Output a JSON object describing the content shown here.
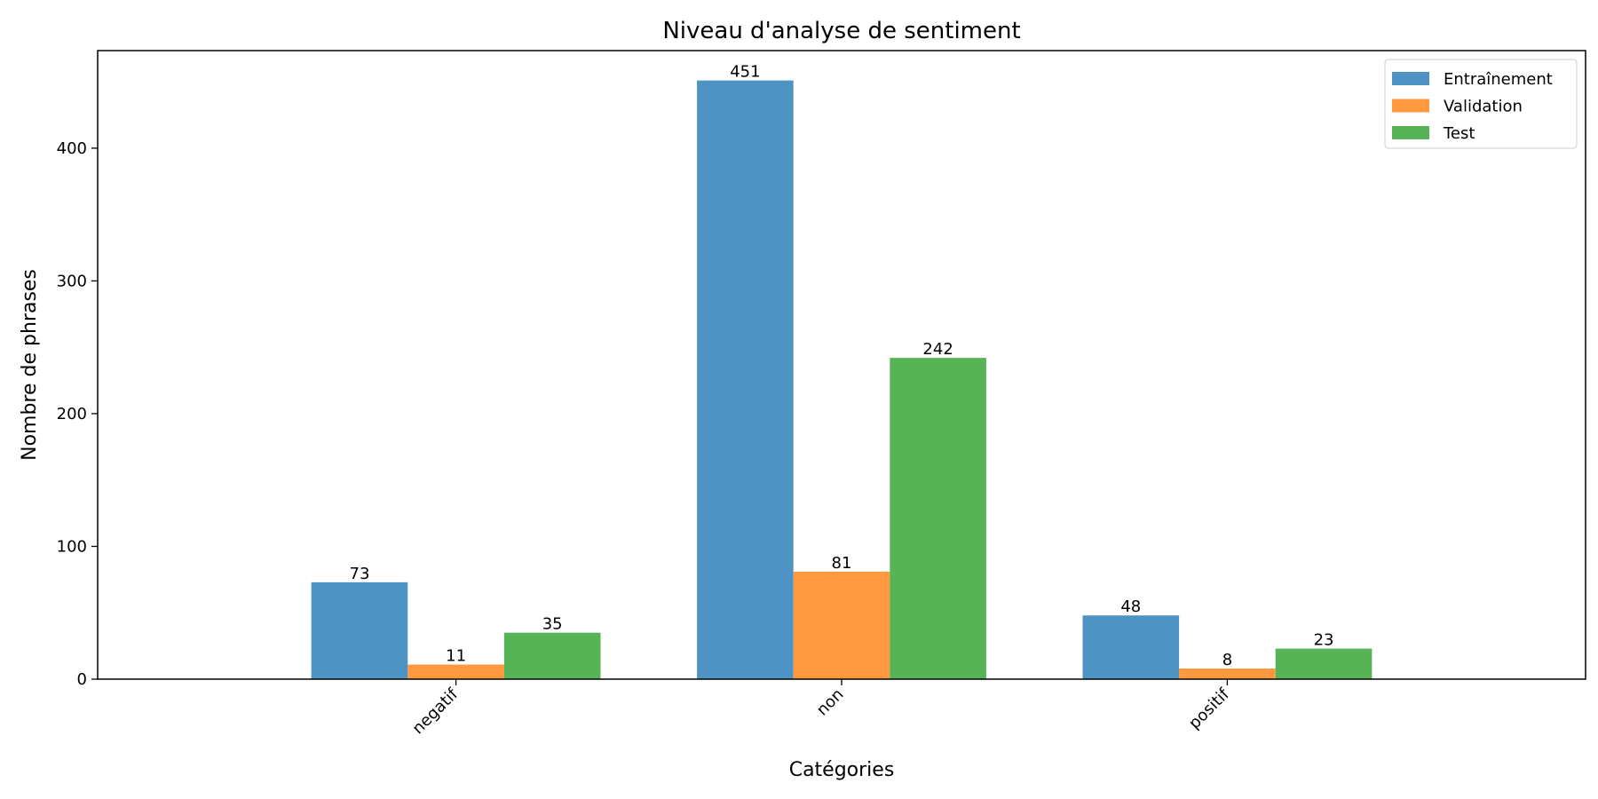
{
  "chart_data": {
    "type": "bar",
    "title": "Niveau d'analyse de sentiment",
    "xlabel": "Catégories",
    "ylabel": "Nombre de phrases",
    "categories": [
      "negatif",
      "non",
      "positif"
    ],
    "series": [
      {
        "name": "Entraînement",
        "values": [
          73,
          451,
          48
        ],
        "color": "#4d93c4"
      },
      {
        "name": "Validation",
        "values": [
          11,
          81,
          8
        ],
        "color": "#ff983f"
      },
      {
        "name": "Test",
        "values": [
          35,
          242,
          23
        ],
        "color": "#56b356"
      }
    ],
    "ylim": [
      0,
      473.5
    ],
    "yticks": [
      0,
      100,
      200,
      300,
      400
    ],
    "legend_position": "top-right",
    "grid": false
  }
}
